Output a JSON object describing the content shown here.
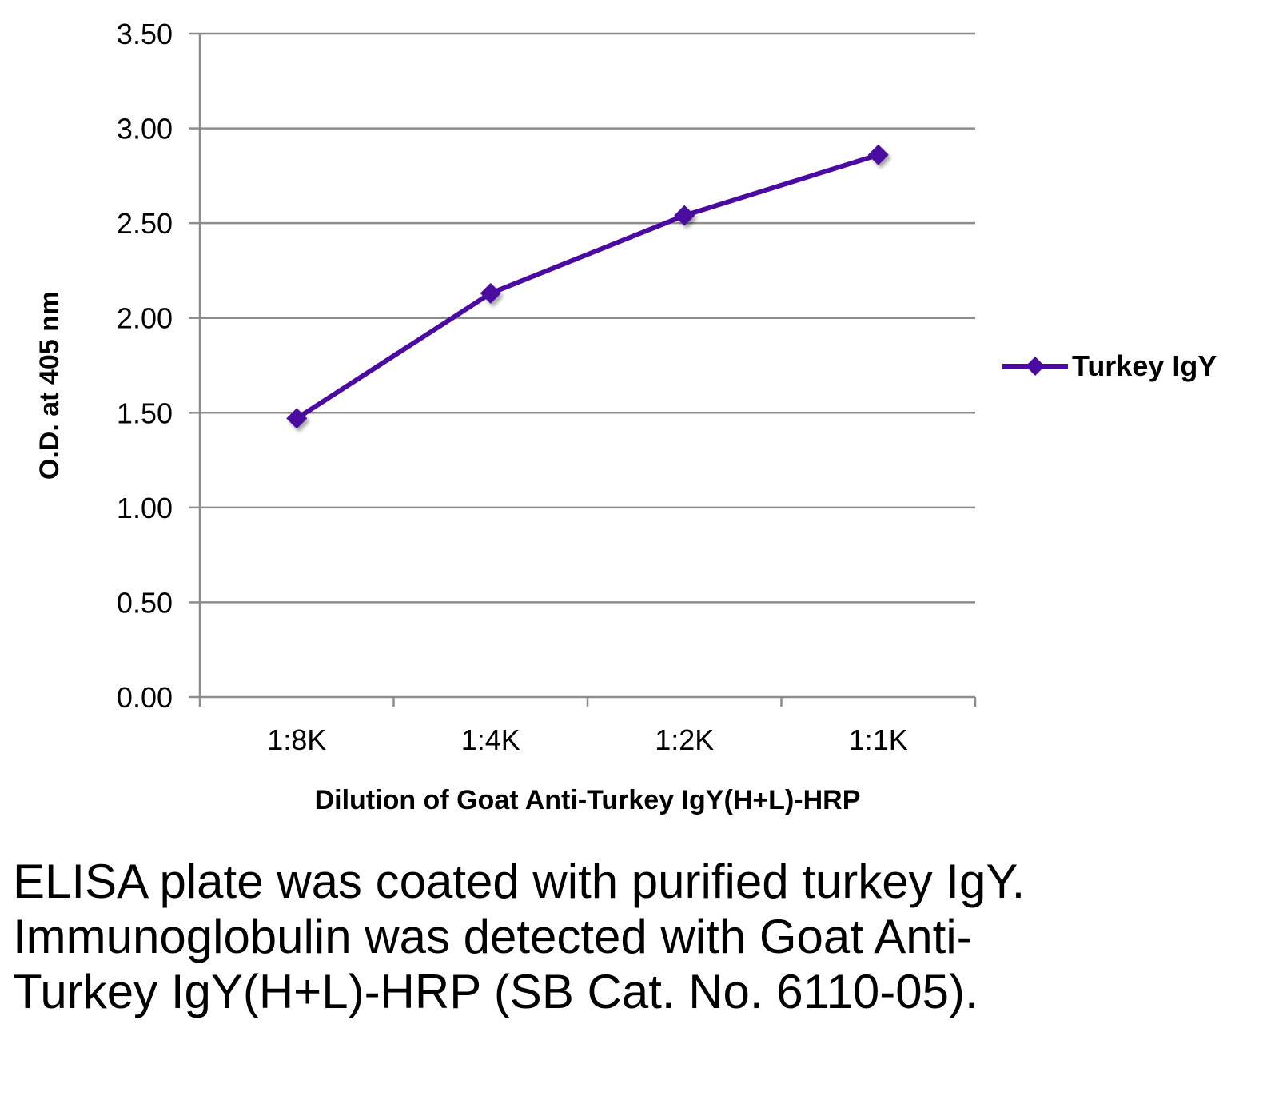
{
  "chart_data": {
    "type": "line",
    "categories": [
      "1:8K",
      "1:4K",
      "1:2K",
      "1:1K"
    ],
    "series": [
      {
        "name": "Turkey IgY",
        "values": [
          1.47,
          2.13,
          2.54,
          2.86
        ],
        "color": "#4b0aa0",
        "marker": "diamond"
      }
    ],
    "yticks": [
      "0.00",
      "0.50",
      "1.00",
      "1.50",
      "2.00",
      "2.50",
      "3.00",
      "3.50"
    ],
    "ylim": [
      0,
      3.5
    ],
    "ylabel": "O.D. at 405 nm",
    "xlabel": "Dilution of Goat Anti-Turkey IgY(H+L)-HRP",
    "grid": true,
    "gridline_color": "#8c8c8c",
    "legend_position": "right"
  },
  "caption": "ELISA plate was coated with purified turkey IgY.  Immunoglobulin was detected with Goat Anti-Turkey IgY(H+L)-HRP (SB Cat. No. 6110-05)."
}
